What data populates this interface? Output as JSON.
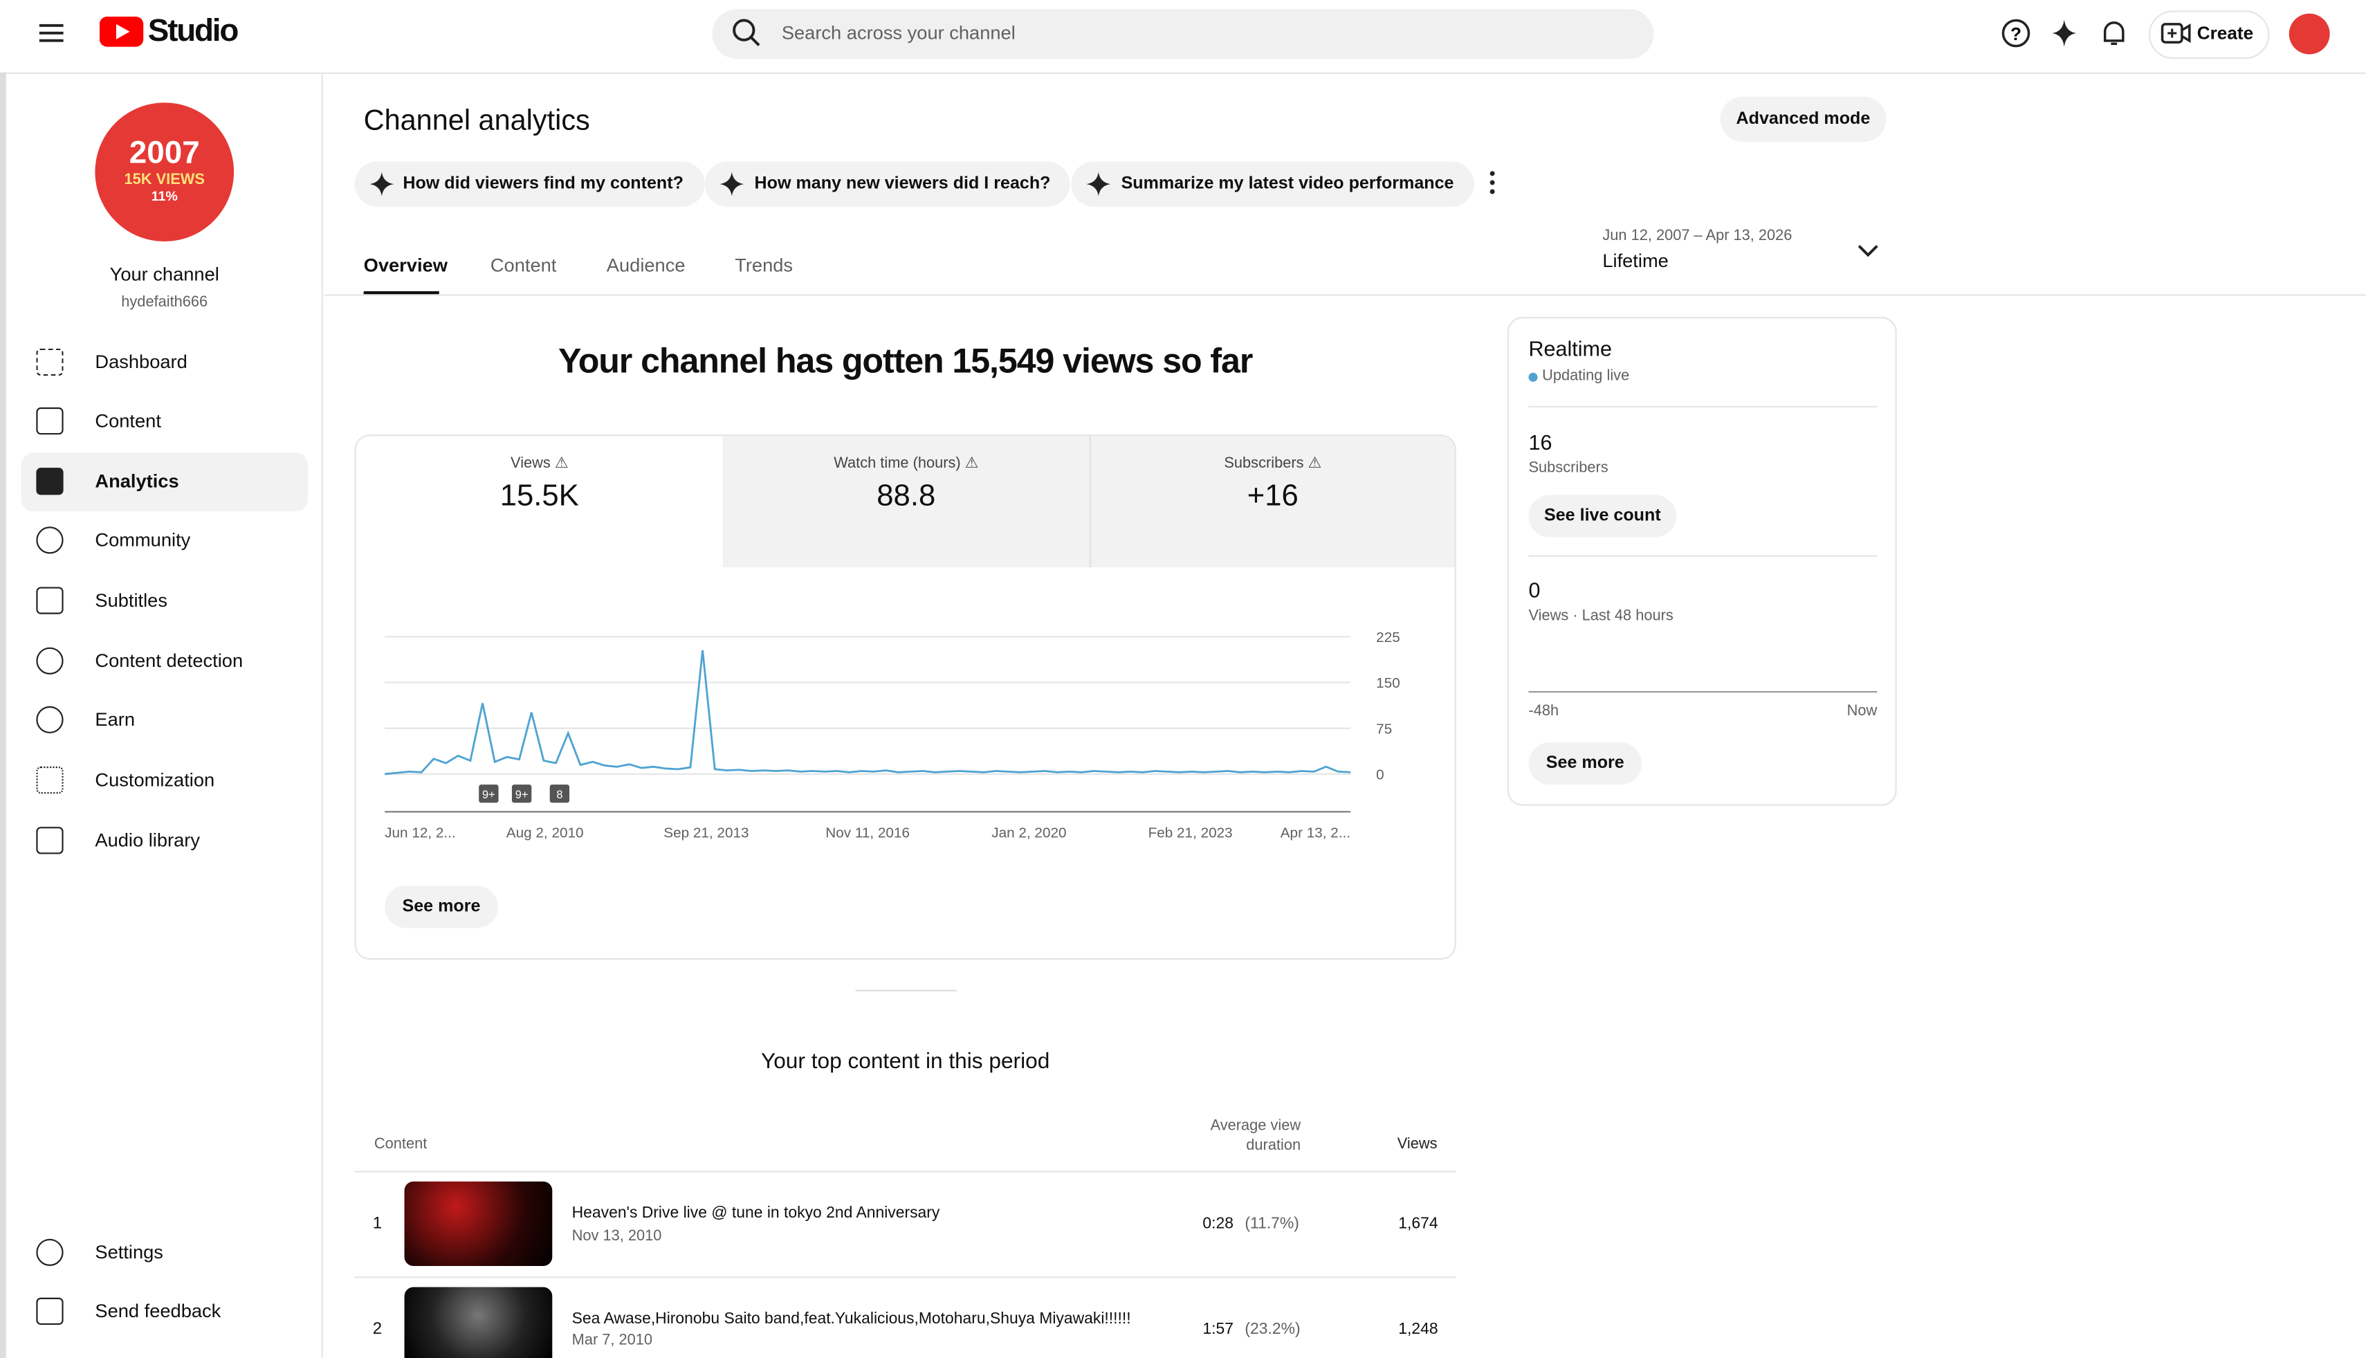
{
  "header": {
    "logo": "Studio",
    "search_placeholder": "Search across your channel",
    "create": "Create"
  },
  "sidebar": {
    "avatar": {
      "line1": "2007",
      "line2": "15K VIEWS",
      "line3": "11%"
    },
    "channel_name": "Your channel",
    "handle": "hydefaith666",
    "nav": [
      "Dashboard",
      "Content",
      "Analytics",
      "Community",
      "Subtitles",
      "Content detection",
      "Earn",
      "Customization",
      "Audio library"
    ],
    "footer_nav": [
      "Settings",
      "Send feedback"
    ]
  },
  "main": {
    "title": "Channel analytics",
    "advanced": "Advanced mode",
    "prompts": [
      "How did viewers find my content?",
      "How many new viewers did I reach?",
      "Summarize my latest video performance"
    ],
    "tabs": [
      "Overview",
      "Content",
      "Audience",
      "Trends"
    ],
    "date_range": {
      "range": "Jun 12, 2007 – Apr 13, 2026",
      "label": "Lifetime"
    },
    "headline": "Your channel has gotten 15,549 views so far",
    "metrics": [
      {
        "label": "Views",
        "value": "15.5K"
      },
      {
        "label": "Watch time (hours)",
        "value": "88.8"
      },
      {
        "label": "Subscribers",
        "value": "+16"
      }
    ],
    "see_more": "See more",
    "top_content": {
      "title": "Your top content in this period",
      "columns": [
        "Content",
        "Average view duration",
        "Views"
      ],
      "rows": [
        {
          "rank": "1",
          "title": "Heaven's Drive live @ tune in tokyo 2nd Anniversary",
          "date": "Nov 13, 2010",
          "duration": "0:28",
          "pct": "(11.7%)",
          "views": "1,674"
        },
        {
          "rank": "2",
          "title": "Sea Awase,Hironobu Saito band,feat.Yukalicious,Motoharu,Shuya Miyawaki!!!!!!",
          "date": "Mar 7, 2010",
          "duration": "1:57",
          "pct": "(23.2%)",
          "views": "1,248"
        }
      ]
    }
  },
  "realtime": {
    "title": "Realtime",
    "status": "Updating live",
    "subscribers": {
      "value": "16",
      "label": "Subscribers",
      "button": "See live count"
    },
    "views": {
      "value": "0",
      "label": "Views · Last 48 hours"
    },
    "axis": [
      "-48h",
      "Now"
    ],
    "button": "See more"
  },
  "chart_data": {
    "type": "line",
    "color": "#4fa3d1",
    "values": [
      0,
      2,
      4,
      3,
      25,
      18,
      30,
      22,
      116,
      20,
      28,
      24,
      101,
      22,
      18,
      67,
      15,
      20,
      14,
      12,
      16,
      10,
      12,
      9,
      8,
      11,
      203,
      8,
      6,
      7,
      5,
      6,
      5,
      6,
      4,
      5,
      4,
      5,
      3,
      5,
      4,
      6,
      3,
      4,
      5,
      3,
      4,
      5,
      4,
      3,
      5,
      4,
      3,
      4,
      5,
      3,
      4,
      3,
      5,
      4,
      3,
      4,
      3,
      5,
      4,
      3,
      4,
      3,
      4,
      5,
      3,
      4,
      3,
      4,
      3,
      5,
      4,
      12,
      4,
      3
    ],
    "xlim": [
      0,
      79
    ],
    "ylim": [
      0,
      225
    ],
    "yticks": [
      0,
      75,
      150,
      225
    ],
    "xticks": [
      {
        "value": 0,
        "label": "Jun 12, 2..."
      },
      {
        "value": 13.1,
        "label": "Aug 2, 2010"
      },
      {
        "value": 26.3,
        "label": "Sep 21, 2013"
      },
      {
        "value": 39.5,
        "label": "Nov 11, 2016"
      },
      {
        "value": 52.7,
        "label": "Jan 2, 2020"
      },
      {
        "value": 65.9,
        "label": "Feb 21, 2023"
      },
      {
        "value": 79,
        "label": "Apr 13, 2..."
      }
    ],
    "annotations": [
      {
        "x": 8.5,
        "label": "9+"
      },
      {
        "x": 11.2,
        "label": "9+"
      },
      {
        "x": 14.3,
        "label": "8"
      }
    ]
  }
}
